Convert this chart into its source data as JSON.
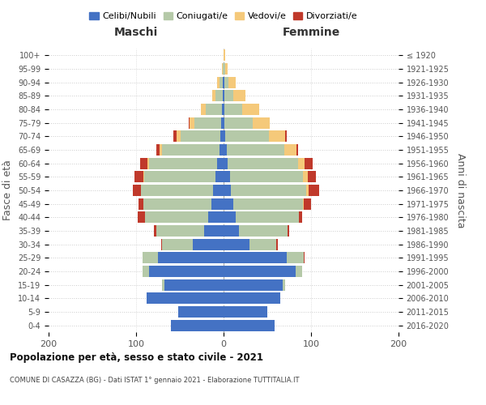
{
  "age_groups": [
    "0-4",
    "5-9",
    "10-14",
    "15-19",
    "20-24",
    "25-29",
    "30-34",
    "35-39",
    "40-44",
    "45-49",
    "50-54",
    "55-59",
    "60-64",
    "65-69",
    "70-74",
    "75-79",
    "80-84",
    "85-89",
    "90-94",
    "95-99",
    "100+"
  ],
  "birth_years": [
    "2016-2020",
    "2011-2015",
    "2006-2010",
    "2001-2005",
    "1996-2000",
    "1991-1995",
    "1986-1990",
    "1981-1985",
    "1976-1980",
    "1971-1975",
    "1966-1970",
    "1961-1965",
    "1956-1960",
    "1951-1955",
    "1946-1950",
    "1941-1945",
    "1936-1940",
    "1931-1935",
    "1926-1930",
    "1921-1925",
    "≤ 1920"
  ],
  "colors": {
    "celibi": "#4472C4",
    "coniugati": "#B5C9A8",
    "vedovi": "#F5C97A",
    "divorziati": "#C0392B"
  },
  "males": {
    "celibi": [
      60,
      52,
      88,
      68,
      85,
      75,
      35,
      22,
      18,
      14,
      12,
      9,
      7,
      5,
      4,
      3,
      2,
      1,
      1,
      0,
      0
    ],
    "coniugati": [
      0,
      0,
      0,
      2,
      8,
      18,
      35,
      55,
      72,
      78,
      82,
      82,
      78,
      65,
      45,
      30,
      18,
      8,
      4,
      1,
      0
    ],
    "vedovi": [
      0,
      0,
      0,
      0,
      0,
      0,
      0,
      0,
      0,
      0,
      0,
      1,
      2,
      3,
      5,
      6,
      6,
      4,
      2,
      1,
      0
    ],
    "divorziati": [
      0,
      0,
      0,
      0,
      0,
      0,
      1,
      3,
      8,
      5,
      10,
      10,
      8,
      4,
      3,
      1,
      0,
      0,
      0,
      0,
      0
    ]
  },
  "females": {
    "celibi": [
      58,
      50,
      65,
      68,
      82,
      72,
      30,
      18,
      14,
      11,
      8,
      7,
      5,
      4,
      2,
      1,
      1,
      1,
      1,
      0,
      0
    ],
    "coniugati": [
      0,
      0,
      0,
      2,
      8,
      20,
      30,
      55,
      72,
      80,
      86,
      84,
      80,
      65,
      50,
      32,
      20,
      10,
      5,
      2,
      0
    ],
    "vedovi": [
      0,
      0,
      0,
      0,
      0,
      0,
      0,
      0,
      0,
      1,
      3,
      5,
      8,
      14,
      18,
      20,
      20,
      14,
      8,
      3,
      2
    ],
    "divorziati": [
      0,
      0,
      0,
      0,
      0,
      1,
      2,
      2,
      4,
      8,
      12,
      10,
      9,
      2,
      2,
      0,
      0,
      0,
      0,
      0,
      0
    ]
  },
  "title": "Popolazione per età, sesso e stato civile - 2021",
  "subtitle": "COMUNE DI CASAZZA (BG) - Dati ISTAT 1° gennaio 2021 - Elaborazione TUTTITALIA.IT",
  "xlabel_left": "Maschi",
  "xlabel_right": "Femmine",
  "ylabel_left": "Fasce di età",
  "ylabel_right": "Anni di nascita",
  "xlim": 200,
  "legend_labels": [
    "Celibi/Nubili",
    "Coniugati/e",
    "Vedovi/e",
    "Divorziati/e"
  ]
}
